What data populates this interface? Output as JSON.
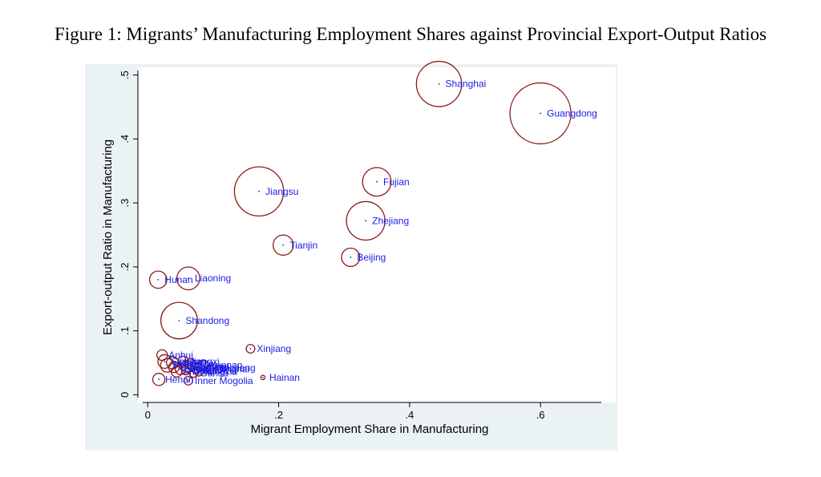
{
  "figure_title": "Figure 1: Migrants’ Manufacturing Employment Shares against Provincial Export-Output Ratios",
  "colors": {
    "bubble": "#8b1a1a",
    "label": "#1a1ae6",
    "panel": "#eaf2f3",
    "plot": "#ffffff"
  },
  "chart_data": {
    "type": "scatter",
    "title": "",
    "xlabel": "Migrant Employment Share in Manufacturing",
    "ylabel": "Export-output Ratio in Manufacturing",
    "xlim": [
      -0.015,
      0.715
    ],
    "ylim": [
      -0.012,
      0.512
    ],
    "x_ticks": [
      {
        "value": 0,
        "label": "0"
      },
      {
        "value": 0.2,
        "label": ".2"
      },
      {
        "value": 0.4,
        "label": ".4"
      },
      {
        "value": 0.6,
        "label": ".6"
      }
    ],
    "y_ticks": [
      {
        "value": 0,
        "label": "0"
      },
      {
        "value": 0.1,
        "label": ".1"
      },
      {
        "value": 0.2,
        "label": ".2"
      },
      {
        "value": 0.3,
        "label": ".3"
      },
      {
        "value": 0.4,
        "label": ".4"
      },
      {
        "value": 0.5,
        "label": ".5"
      }
    ],
    "grid": false,
    "legend": "none",
    "note": "bubble size is proportional to weight",
    "points": [
      {
        "label": "Guangdong",
        "x": 0.6,
        "y": 0.44,
        "size": 1.0
      },
      {
        "label": "Shanghai",
        "x": 0.445,
        "y": 0.486,
        "size": 0.55
      },
      {
        "label": "Jiangsu",
        "x": 0.17,
        "y": 0.318,
        "size": 0.65
      },
      {
        "label": "Fujian",
        "x": 0.35,
        "y": 0.333,
        "size": 0.22
      },
      {
        "label": "Zhejiang",
        "x": 0.333,
        "y": 0.272,
        "size": 0.4
      },
      {
        "label": "Tianjin",
        "x": 0.207,
        "y": 0.234,
        "size": 0.11
      },
      {
        "label": "Beijing",
        "x": 0.31,
        "y": 0.215,
        "size": 0.09
      },
      {
        "label": "Hunan",
        "x": 0.016,
        "y": 0.18,
        "size": 0.08
      },
      {
        "label": "Liaoning",
        "x": 0.062,
        "y": 0.182,
        "size": 0.14
      },
      {
        "label": "Shandong",
        "x": 0.048,
        "y": 0.116,
        "size": 0.36
      },
      {
        "label": "Xinjiang",
        "x": 0.157,
        "y": 0.072,
        "size": 0.02
      },
      {
        "label": "Anhui",
        "x": 0.022,
        "y": 0.062,
        "size": 0.03
      },
      {
        "label": "Hainan",
        "x": 0.176,
        "y": 0.027,
        "size": 0.005
      },
      {
        "label": "Henan",
        "x": 0.017,
        "y": 0.024,
        "size": 0.04
      },
      {
        "label": "Inner Mogolia",
        "x": 0.062,
        "y": 0.022,
        "size": 0.02
      },
      {
        "label": "Jiangxi",
        "x": 0.054,
        "y": 0.052,
        "size": 0.03
      },
      {
        "label": "Yunnan",
        "x": 0.085,
        "y": 0.046,
        "size": 0.03
      },
      {
        "label": "Qinghai",
        "x": 0.095,
        "y": 0.04,
        "size": 0.02
      },
      {
        "label": "Hubei",
        "x": 0.038,
        "y": 0.05,
        "size": 0.04
      },
      {
        "label": "Hebei",
        "x": 0.03,
        "y": 0.046,
        "size": 0.05
      },
      {
        "label": "Guangxi",
        "x": 0.06,
        "y": 0.044,
        "size": 0.04
      },
      {
        "label": "Shaanxi",
        "x": 0.05,
        "y": 0.04,
        "size": 0.03
      },
      {
        "label": "Shanxi",
        "x": 0.044,
        "y": 0.036,
        "size": 0.03
      },
      {
        "label": "Sichuan",
        "x": 0.026,
        "y": 0.052,
        "size": 0.05
      },
      {
        "label": "Gansu",
        "x": 0.07,
        "y": 0.034,
        "size": 0.02
      },
      {
        "label": "Jilin",
        "x": 0.066,
        "y": 0.048,
        "size": 0.03
      },
      {
        "label": "Heilongjiang",
        "x": 0.074,
        "y": 0.042,
        "size": 0.03
      },
      {
        "label": "Guizhou",
        "x": 0.058,
        "y": 0.038,
        "size": 0.02
      },
      {
        "label": "Ningxia",
        "x": 0.078,
        "y": 0.036,
        "size": 0.02
      },
      {
        "label": "Chongqing",
        "x": 0.04,
        "y": 0.043,
        "size": 0.03
      }
    ]
  }
}
